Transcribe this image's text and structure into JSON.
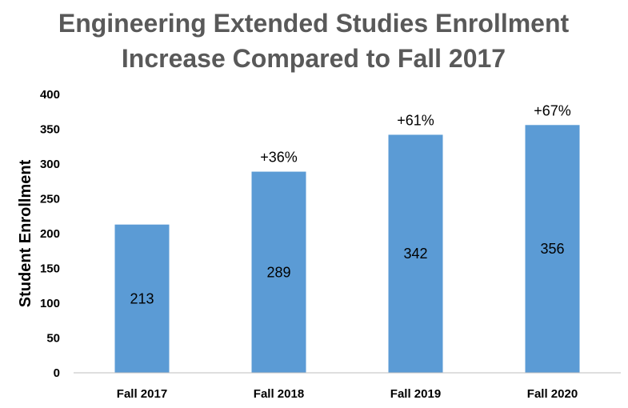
{
  "chart_data": {
    "type": "bar",
    "title_lines": [
      "Engineering Extended Studies Enrollment",
      "Increase Compared to Fall 2017"
    ],
    "xlabel": "",
    "ylabel": "Student Enrollment",
    "categories": [
      "Fall 2017",
      "Fall 2018",
      "Fall 2019",
      "Fall 2020"
    ],
    "values": [
      213,
      289,
      342,
      356
    ],
    "value_labels": [
      "213",
      "289",
      "342",
      "356"
    ],
    "increase_labels": [
      "",
      "+36%",
      "+61%",
      "+67%"
    ],
    "ylim": [
      0,
      400
    ],
    "yticks": [
      0,
      50,
      100,
      150,
      200,
      250,
      300,
      350,
      400
    ],
    "bar_color": "#5B9BD5",
    "title_color": "#595959",
    "grid": false,
    "legend": "none"
  }
}
